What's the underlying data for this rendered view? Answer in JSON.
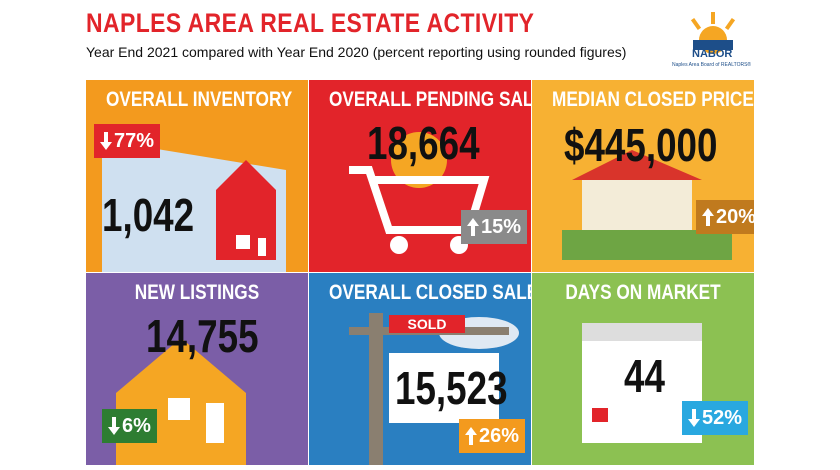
{
  "header": {
    "title": "NAPLES AREA REAL ESTATE ACTIVITY",
    "subtitle": "Year End 2021 compared with Year End 2020 (percent reporting using rounded figures)"
  },
  "logo": {
    "name": "NABOR",
    "tagline": "Naples Area Board of REALTORS®"
  },
  "tiles": [
    {
      "title": "OVERALL INVENTORY",
      "value": "1,042",
      "change": "77%",
      "direction": "down"
    },
    {
      "title": "OVERALL PENDING SALES",
      "value": "18,664",
      "change": "15%",
      "direction": "up"
    },
    {
      "title": "MEDIAN CLOSED PRICE",
      "value": "$445,000",
      "change": "20%",
      "direction": "up"
    },
    {
      "title": "NEW LISTINGS",
      "value": "14,755",
      "change": "6%",
      "direction": "down"
    },
    {
      "title": "OVERALL CLOSED SALES",
      "value": "15,523",
      "change": "26%",
      "direction": "up"
    },
    {
      "title": "DAYS ON MARKET",
      "value": "44",
      "change": "52%",
      "direction": "down"
    }
  ],
  "sold_sign": "SOLD"
}
